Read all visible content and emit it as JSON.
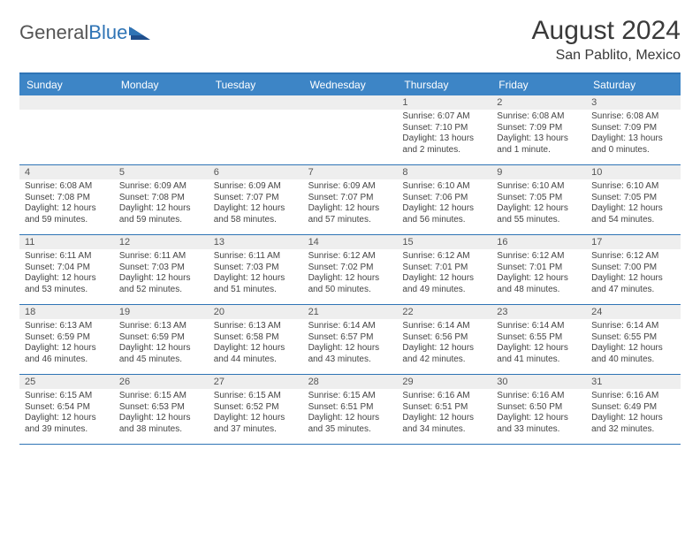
{
  "logo": {
    "text_dark": "General",
    "text_blue": "Blue"
  },
  "title": "August 2024",
  "subtitle": "San Pablito, Mexico",
  "colors": {
    "header_bar": "#3d85c6",
    "accent_line": "#2f74b5",
    "daynum_bg": "#eeeeee",
    "text": "#333333",
    "background": "#ffffff"
  },
  "day_names": [
    "Sunday",
    "Monday",
    "Tuesday",
    "Wednesday",
    "Thursday",
    "Friday",
    "Saturday"
  ],
  "weeks": [
    [
      {
        "n": "",
        "lines": []
      },
      {
        "n": "",
        "lines": []
      },
      {
        "n": "",
        "lines": []
      },
      {
        "n": "",
        "lines": []
      },
      {
        "n": "1",
        "lines": [
          "Sunrise: 6:07 AM",
          "Sunset: 7:10 PM",
          "Daylight: 13 hours",
          "and 2 minutes."
        ]
      },
      {
        "n": "2",
        "lines": [
          "Sunrise: 6:08 AM",
          "Sunset: 7:09 PM",
          "Daylight: 13 hours",
          "and 1 minute."
        ]
      },
      {
        "n": "3",
        "lines": [
          "Sunrise: 6:08 AM",
          "Sunset: 7:09 PM",
          "Daylight: 13 hours",
          "and 0 minutes."
        ]
      }
    ],
    [
      {
        "n": "4",
        "lines": [
          "Sunrise: 6:08 AM",
          "Sunset: 7:08 PM",
          "Daylight: 12 hours",
          "and 59 minutes."
        ]
      },
      {
        "n": "5",
        "lines": [
          "Sunrise: 6:09 AM",
          "Sunset: 7:08 PM",
          "Daylight: 12 hours",
          "and 59 minutes."
        ]
      },
      {
        "n": "6",
        "lines": [
          "Sunrise: 6:09 AM",
          "Sunset: 7:07 PM",
          "Daylight: 12 hours",
          "and 58 minutes."
        ]
      },
      {
        "n": "7",
        "lines": [
          "Sunrise: 6:09 AM",
          "Sunset: 7:07 PM",
          "Daylight: 12 hours",
          "and 57 minutes."
        ]
      },
      {
        "n": "8",
        "lines": [
          "Sunrise: 6:10 AM",
          "Sunset: 7:06 PM",
          "Daylight: 12 hours",
          "and 56 minutes."
        ]
      },
      {
        "n": "9",
        "lines": [
          "Sunrise: 6:10 AM",
          "Sunset: 7:05 PM",
          "Daylight: 12 hours",
          "and 55 minutes."
        ]
      },
      {
        "n": "10",
        "lines": [
          "Sunrise: 6:10 AM",
          "Sunset: 7:05 PM",
          "Daylight: 12 hours",
          "and 54 minutes."
        ]
      }
    ],
    [
      {
        "n": "11",
        "lines": [
          "Sunrise: 6:11 AM",
          "Sunset: 7:04 PM",
          "Daylight: 12 hours",
          "and 53 minutes."
        ]
      },
      {
        "n": "12",
        "lines": [
          "Sunrise: 6:11 AM",
          "Sunset: 7:03 PM",
          "Daylight: 12 hours",
          "and 52 minutes."
        ]
      },
      {
        "n": "13",
        "lines": [
          "Sunrise: 6:11 AM",
          "Sunset: 7:03 PM",
          "Daylight: 12 hours",
          "and 51 minutes."
        ]
      },
      {
        "n": "14",
        "lines": [
          "Sunrise: 6:12 AM",
          "Sunset: 7:02 PM",
          "Daylight: 12 hours",
          "and 50 minutes."
        ]
      },
      {
        "n": "15",
        "lines": [
          "Sunrise: 6:12 AM",
          "Sunset: 7:01 PM",
          "Daylight: 12 hours",
          "and 49 minutes."
        ]
      },
      {
        "n": "16",
        "lines": [
          "Sunrise: 6:12 AM",
          "Sunset: 7:01 PM",
          "Daylight: 12 hours",
          "and 48 minutes."
        ]
      },
      {
        "n": "17",
        "lines": [
          "Sunrise: 6:12 AM",
          "Sunset: 7:00 PM",
          "Daylight: 12 hours",
          "and 47 minutes."
        ]
      }
    ],
    [
      {
        "n": "18",
        "lines": [
          "Sunrise: 6:13 AM",
          "Sunset: 6:59 PM",
          "Daylight: 12 hours",
          "and 46 minutes."
        ]
      },
      {
        "n": "19",
        "lines": [
          "Sunrise: 6:13 AM",
          "Sunset: 6:59 PM",
          "Daylight: 12 hours",
          "and 45 minutes."
        ]
      },
      {
        "n": "20",
        "lines": [
          "Sunrise: 6:13 AM",
          "Sunset: 6:58 PM",
          "Daylight: 12 hours",
          "and 44 minutes."
        ]
      },
      {
        "n": "21",
        "lines": [
          "Sunrise: 6:14 AM",
          "Sunset: 6:57 PM",
          "Daylight: 12 hours",
          "and 43 minutes."
        ]
      },
      {
        "n": "22",
        "lines": [
          "Sunrise: 6:14 AM",
          "Sunset: 6:56 PM",
          "Daylight: 12 hours",
          "and 42 minutes."
        ]
      },
      {
        "n": "23",
        "lines": [
          "Sunrise: 6:14 AM",
          "Sunset: 6:55 PM",
          "Daylight: 12 hours",
          "and 41 minutes."
        ]
      },
      {
        "n": "24",
        "lines": [
          "Sunrise: 6:14 AM",
          "Sunset: 6:55 PM",
          "Daylight: 12 hours",
          "and 40 minutes."
        ]
      }
    ],
    [
      {
        "n": "25",
        "lines": [
          "Sunrise: 6:15 AM",
          "Sunset: 6:54 PM",
          "Daylight: 12 hours",
          "and 39 minutes."
        ]
      },
      {
        "n": "26",
        "lines": [
          "Sunrise: 6:15 AM",
          "Sunset: 6:53 PM",
          "Daylight: 12 hours",
          "and 38 minutes."
        ]
      },
      {
        "n": "27",
        "lines": [
          "Sunrise: 6:15 AM",
          "Sunset: 6:52 PM",
          "Daylight: 12 hours",
          "and 37 minutes."
        ]
      },
      {
        "n": "28",
        "lines": [
          "Sunrise: 6:15 AM",
          "Sunset: 6:51 PM",
          "Daylight: 12 hours",
          "and 35 minutes."
        ]
      },
      {
        "n": "29",
        "lines": [
          "Sunrise: 6:16 AM",
          "Sunset: 6:51 PM",
          "Daylight: 12 hours",
          "and 34 minutes."
        ]
      },
      {
        "n": "30",
        "lines": [
          "Sunrise: 6:16 AM",
          "Sunset: 6:50 PM",
          "Daylight: 12 hours",
          "and 33 minutes."
        ]
      },
      {
        "n": "31",
        "lines": [
          "Sunrise: 6:16 AM",
          "Sunset: 6:49 PM",
          "Daylight: 12 hours",
          "and 32 minutes."
        ]
      }
    ]
  ]
}
